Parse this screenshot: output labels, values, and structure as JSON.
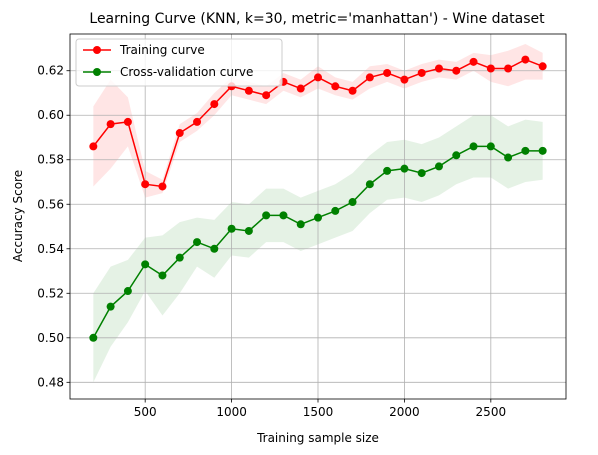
{
  "chart_data": {
    "type": "line",
    "title": "Learning Curve (KNN, k=30, metric='manhattan') - Wine dataset",
    "xlabel": "Training sample size",
    "ylabel": "Accuracy Score",
    "xlim": [
      65,
      2935
    ],
    "ylim": [
      0.4725,
      0.6365
    ],
    "xticks": [
      500,
      1000,
      1500,
      2000,
      2500
    ],
    "xtick_labels": [
      "500",
      "1000",
      "1500",
      "2000",
      "2500"
    ],
    "yticks": [
      0.48,
      0.5,
      0.52,
      0.54,
      0.56,
      0.58,
      0.6,
      0.62
    ],
    "ytick_labels": [
      "0.48",
      "0.50",
      "0.52",
      "0.54",
      "0.56",
      "0.58",
      "0.60",
      "0.62"
    ],
    "grid": true,
    "legend_position": "top-left",
    "x": [
      200,
      300,
      400,
      500,
      600,
      700,
      800,
      900,
      1000,
      1100,
      1200,
      1300,
      1400,
      1500,
      1600,
      1700,
      1800,
      1900,
      2000,
      2100,
      2200,
      2300,
      2400,
      2500,
      2600,
      2700,
      2800
    ],
    "series": [
      {
        "name": "Training curve",
        "color": "#ff0000",
        "values": [
          0.586,
          0.596,
          0.597,
          0.569,
          0.568,
          0.592,
          0.597,
          0.605,
          0.613,
          0.611,
          0.609,
          0.615,
          0.612,
          0.617,
          0.613,
          0.611,
          0.617,
          0.619,
          0.616,
          0.619,
          0.621,
          0.62,
          0.624,
          0.621,
          0.621,
          0.625,
          0.622
        ],
        "lower": [
          0.568,
          0.576,
          0.586,
          0.563,
          0.565,
          0.588,
          0.593,
          0.6,
          0.609,
          0.607,
          0.605,
          0.611,
          0.608,
          0.612,
          0.609,
          0.607,
          0.612,
          0.615,
          0.612,
          0.615,
          0.617,
          0.616,
          0.62,
          0.615,
          0.613,
          0.616,
          0.616
        ],
        "upper": [
          0.604,
          0.616,
          0.608,
          0.575,
          0.571,
          0.596,
          0.601,
          0.61,
          0.617,
          0.615,
          0.613,
          0.619,
          0.616,
          0.622,
          0.617,
          0.615,
          0.622,
          0.623,
          0.62,
          0.623,
          0.625,
          0.624,
          0.628,
          0.627,
          0.629,
          0.632,
          0.628
        ]
      },
      {
        "name": "Cross-validation curve",
        "color": "#008000",
        "values": [
          0.5,
          0.514,
          0.521,
          0.533,
          0.528,
          0.536,
          0.543,
          0.54,
          0.549,
          0.548,
          0.555,
          0.555,
          0.551,
          0.554,
          0.557,
          0.561,
          0.569,
          0.575,
          0.576,
          0.574,
          0.577,
          0.582,
          0.586,
          0.586,
          0.581,
          0.584,
          0.584
        ],
        "lower": [
          0.48,
          0.496,
          0.507,
          0.521,
          0.51,
          0.52,
          0.532,
          0.527,
          0.537,
          0.536,
          0.543,
          0.543,
          0.539,
          0.542,
          0.545,
          0.548,
          0.556,
          0.562,
          0.563,
          0.561,
          0.564,
          0.569,
          0.572,
          0.572,
          0.567,
          0.57,
          0.571
        ],
        "upper": [
          0.52,
          0.532,
          0.535,
          0.545,
          0.546,
          0.552,
          0.554,
          0.553,
          0.561,
          0.56,
          0.567,
          0.567,
          0.563,
          0.566,
          0.569,
          0.574,
          0.582,
          0.588,
          0.589,
          0.587,
          0.59,
          0.595,
          0.6,
          0.6,
          0.595,
          0.598,
          0.597
        ]
      }
    ]
  }
}
